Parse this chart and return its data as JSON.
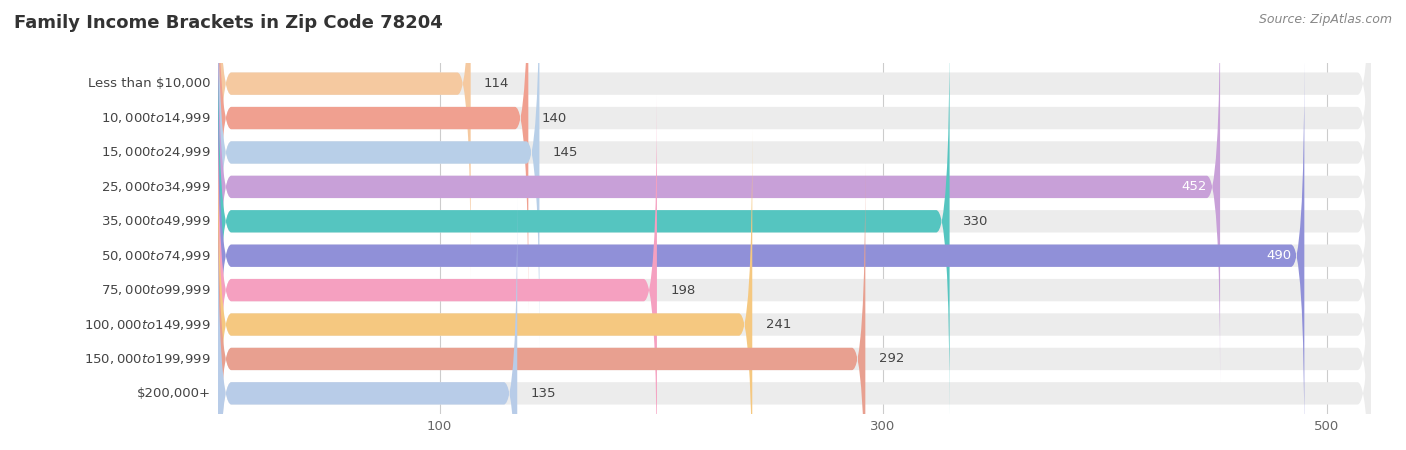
{
  "title": "Family Income Brackets in Zip Code 78204",
  "source": "Source: ZipAtlas.com",
  "categories": [
    "Less than $10,000",
    "$10,000 to $14,999",
    "$15,000 to $24,999",
    "$25,000 to $34,999",
    "$35,000 to $49,999",
    "$50,000 to $74,999",
    "$75,000 to $99,999",
    "$100,000 to $149,999",
    "$150,000 to $199,999",
    "$200,000+"
  ],
  "values": [
    114,
    140,
    145,
    452,
    330,
    490,
    198,
    241,
    292,
    135
  ],
  "bar_colors": [
    "#f5c9a0",
    "#f0a090",
    "#b8cfe8",
    "#c8a0d8",
    "#55c5c0",
    "#9090d8",
    "#f5a0c0",
    "#f5c880",
    "#e8a090",
    "#b8cce8"
  ],
  "label_colors_inside": [
    "#5a4a3a",
    "#5a4a3a",
    "#5a4a3a",
    "#ffffff",
    "#3a3a3a",
    "#ffffff",
    "#5a4a3a",
    "#5a4a3a",
    "#5a4a3a",
    "#5a4a3a"
  ],
  "xlim": [
    0,
    520
  ],
  "xticks": [
    100,
    300,
    500
  ],
  "title_fontsize": 13,
  "label_fontsize": 9.5,
  "value_fontsize": 9.5,
  "tick_fontsize": 9.5,
  "source_fontsize": 9
}
